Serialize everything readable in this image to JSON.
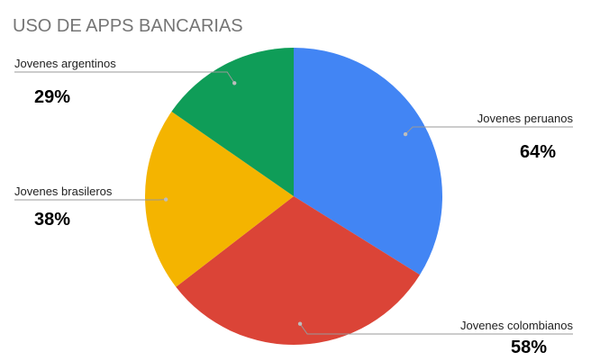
{
  "chart_data": {
    "type": "pie",
    "title": "USO DE APPS BANCARIAS",
    "categories": [
      "Jovenes peruanos",
      "Jovenes colombianos",
      "Jovenes brasileros",
      "Jovenes argentinos"
    ],
    "values": [
      64,
      58,
      38,
      29
    ],
    "value_labels": [
      "64%",
      "58%",
      "38%",
      "29%"
    ],
    "colors": [
      "#4285f4",
      "#db4437",
      "#f4b400",
      "#0f9d58"
    ],
    "start_angle": "12 o'clock",
    "direction": "clockwise",
    "legend": "none"
  }
}
